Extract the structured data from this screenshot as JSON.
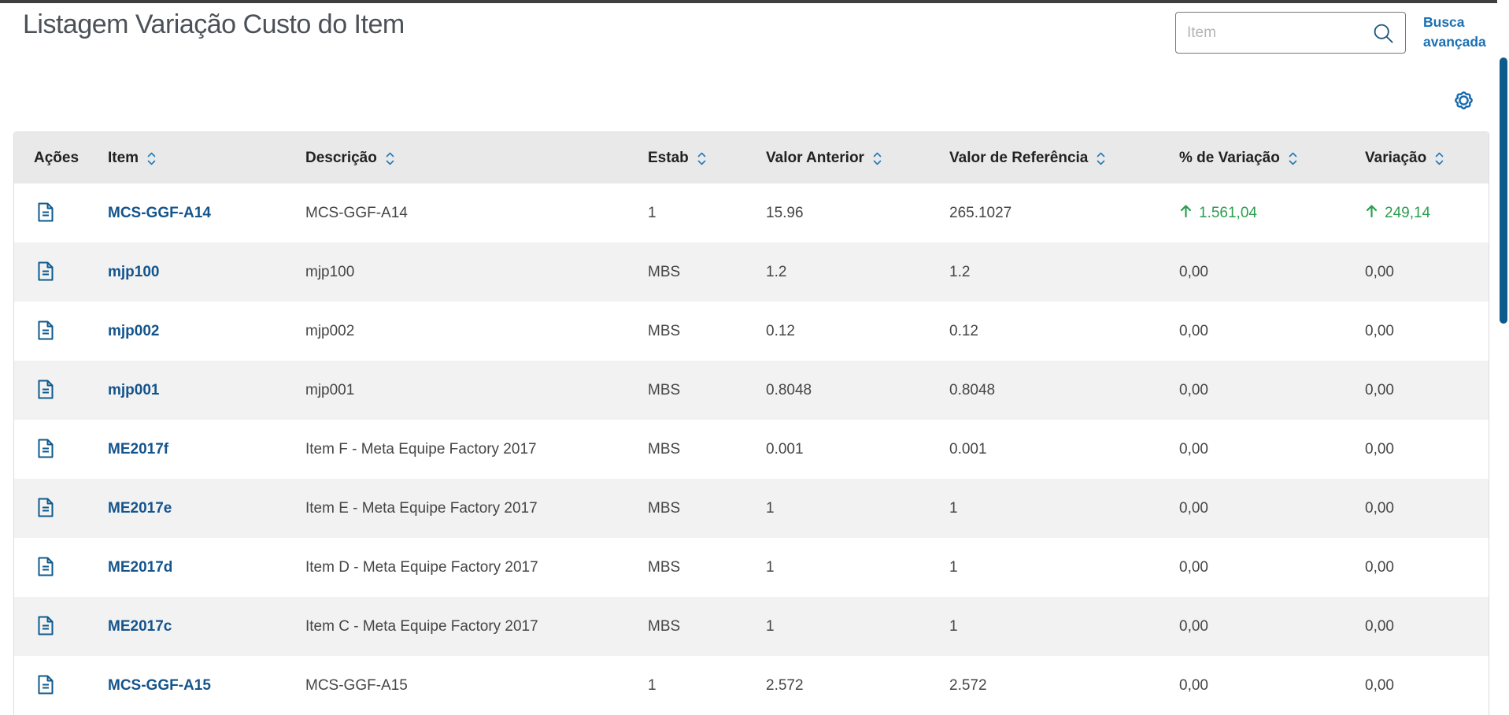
{
  "page": {
    "title": "Listagem Variação Custo do Item"
  },
  "search": {
    "placeholder": "Item",
    "advanced_label": "Busca avançada"
  },
  "icons": {
    "search": "search-icon",
    "settings": "gear-icon",
    "sort": "sort-chevrons-icon",
    "row_action": "document-icon",
    "trend_up": "arrow-up-icon"
  },
  "table": {
    "columns": [
      {
        "label": "Ações",
        "sortable": false
      },
      {
        "label": "Item",
        "sortable": true
      },
      {
        "label": "Descrição",
        "sortable": true
      },
      {
        "label": "Estab",
        "sortable": true
      },
      {
        "label": "Valor Anterior",
        "sortable": true
      },
      {
        "label": "Valor de Referência",
        "sortable": true
      },
      {
        "label": "% de Variação",
        "sortable": true
      },
      {
        "label": "Variação",
        "sortable": true
      }
    ],
    "rows": [
      {
        "item": "MCS-GGF-A14",
        "description": "MCS-GGF-A14",
        "estab": "1",
        "valor_anterior": "15.96",
        "valor_referencia": "265.1027",
        "pct_variacao": "1.561,04",
        "variacao": "249,14",
        "trend": "up"
      },
      {
        "item": "mjp100",
        "description": "mjp100",
        "estab": "MBS",
        "valor_anterior": "1.2",
        "valor_referencia": "1.2",
        "pct_variacao": "0,00",
        "variacao": "0,00",
        "trend": "none"
      },
      {
        "item": "mjp002",
        "description": "mjp002",
        "estab": "MBS",
        "valor_anterior": "0.12",
        "valor_referencia": "0.12",
        "pct_variacao": "0,00",
        "variacao": "0,00",
        "trend": "none"
      },
      {
        "item": "mjp001",
        "description": "mjp001",
        "estab": "MBS",
        "valor_anterior": "0.8048",
        "valor_referencia": "0.8048",
        "pct_variacao": "0,00",
        "variacao": "0,00",
        "trend": "none"
      },
      {
        "item": "ME2017f",
        "description": "Item F - Meta Equipe Factory 2017",
        "estab": "MBS",
        "valor_anterior": "0.001",
        "valor_referencia": "0.001",
        "pct_variacao": "0,00",
        "variacao": "0,00",
        "trend": "none"
      },
      {
        "item": "ME2017e",
        "description": "Item E - Meta Equipe Factory 2017",
        "estab": "MBS",
        "valor_anterior": "1",
        "valor_referencia": "1",
        "pct_variacao": "0,00",
        "variacao": "0,00",
        "trend": "none"
      },
      {
        "item": "ME2017d",
        "description": "Item D - Meta Equipe Factory 2017",
        "estab": "MBS",
        "valor_anterior": "1",
        "valor_referencia": "1",
        "pct_variacao": "0,00",
        "variacao": "0,00",
        "trend": "none"
      },
      {
        "item": "ME2017c",
        "description": "Item C - Meta Equipe Factory 2017",
        "estab": "MBS",
        "valor_anterior": "1",
        "valor_referencia": "1",
        "pct_variacao": "0,00",
        "variacao": "0,00",
        "trend": "none"
      },
      {
        "item": "MCS-GGF-A15",
        "description": "MCS-GGF-A15",
        "estab": "1",
        "valor_anterior": "2.572",
        "valor_referencia": "2.572",
        "pct_variacao": "0,00",
        "variacao": "0,00",
        "trend": "none"
      }
    ]
  },
  "colors": {
    "accent_blue": "#1a70b5",
    "link_blue": "#14548c",
    "positive_green": "#2b9e4f",
    "header_bg": "#e9e9e9",
    "row_alt_bg": "#f2f2f2",
    "scrollbar_thumb": "#0e5a8c",
    "topbar_bar": "#3f3f3f"
  }
}
